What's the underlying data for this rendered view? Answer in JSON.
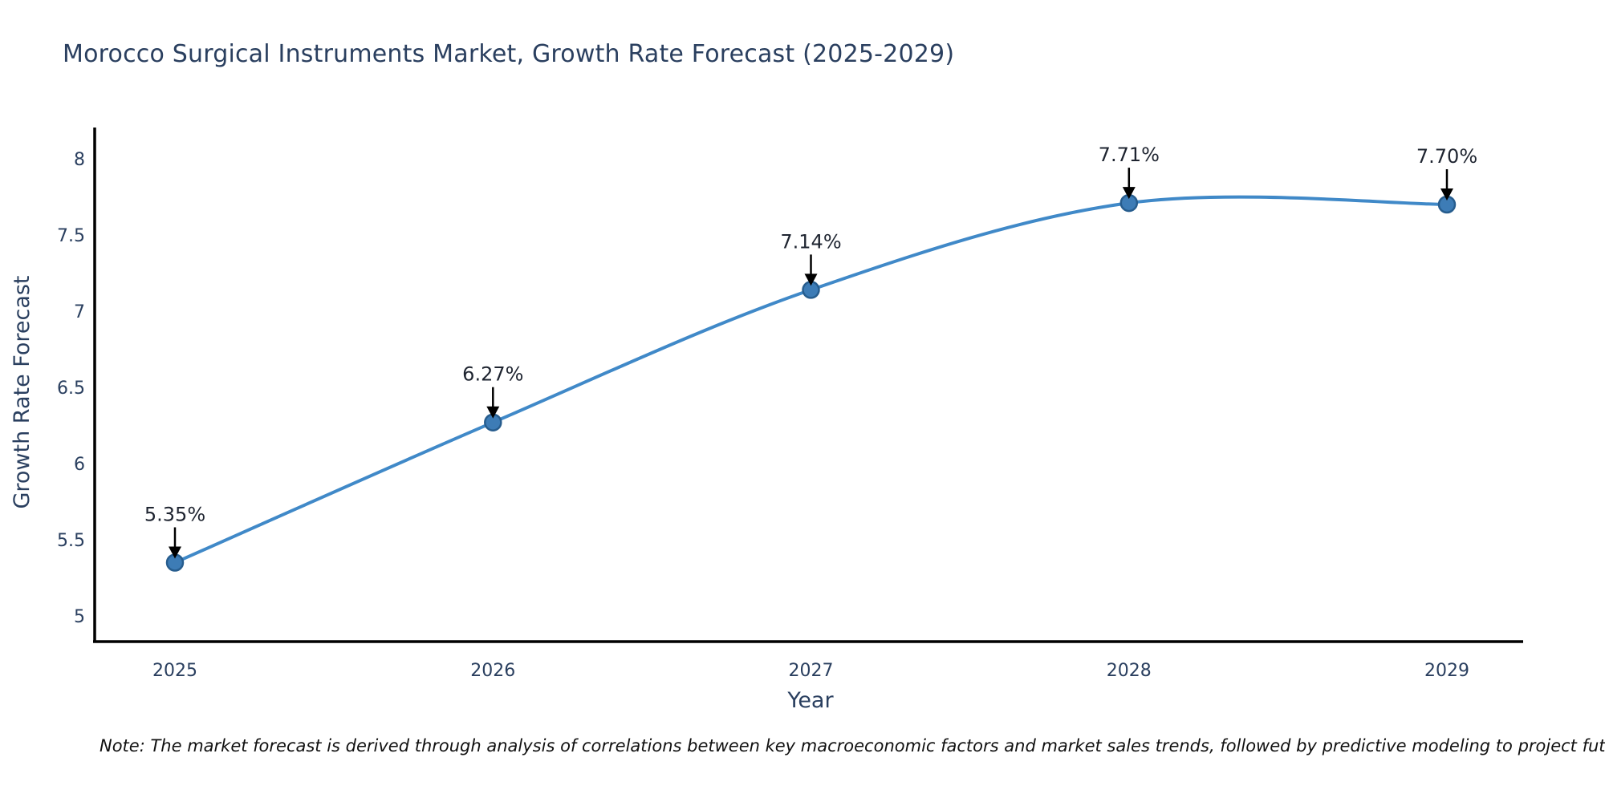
{
  "title": {
    "text": "Morocco Surgical Instruments Market, Growth Rate Forecast (2025-2029)",
    "color": "#2a3f5f"
  },
  "note": {
    "text": "Note: The market forecast is derived through analysis of correlations between key macroeconomic factors and market sales trends, followed by predictive modeling to project future sales",
    "color": "#111111"
  },
  "chart_data": {
    "type": "line",
    "title": "Morocco Surgical Instruments Market, Growth Rate Forecast (2025-2029)",
    "xlabel": "Year",
    "ylabel": "Growth Rate Forecast",
    "categories": [
      "2025",
      "2026",
      "2027",
      "2028",
      "2029"
    ],
    "series": [
      {
        "name": "Growth Rate Forecast",
        "values": [
          5.35,
          6.27,
          7.14,
          7.71,
          7.7
        ],
        "point_labels": [
          "5.35%",
          "6.27%",
          "7.14%",
          "7.71%",
          "7.70%"
        ]
      }
    ],
    "line_shape": "spline",
    "markers": true,
    "grid": false,
    "legend": "none",
    "ylim": [
      4.83,
      8.21
    ],
    "yticks": {
      "values": [
        5,
        5.5,
        6,
        6.5,
        7,
        7.5,
        8
      ],
      "labels": [
        "5",
        "5.5",
        "6",
        "6.5",
        "7",
        "7.5",
        "8"
      ]
    },
    "annotations_have_arrows": true,
    "styles": {
      "line_color": "#4089c8",
      "marker_fill": "#3d7cb6",
      "marker_edge": "#275d8e",
      "axis_color": "#000000",
      "tick_color": "#2a3f5f",
      "axis_title_color": "#2a3f5f",
      "annotation_text_color": "#1e2430",
      "annotation_arrow_color": "#000000"
    }
  }
}
